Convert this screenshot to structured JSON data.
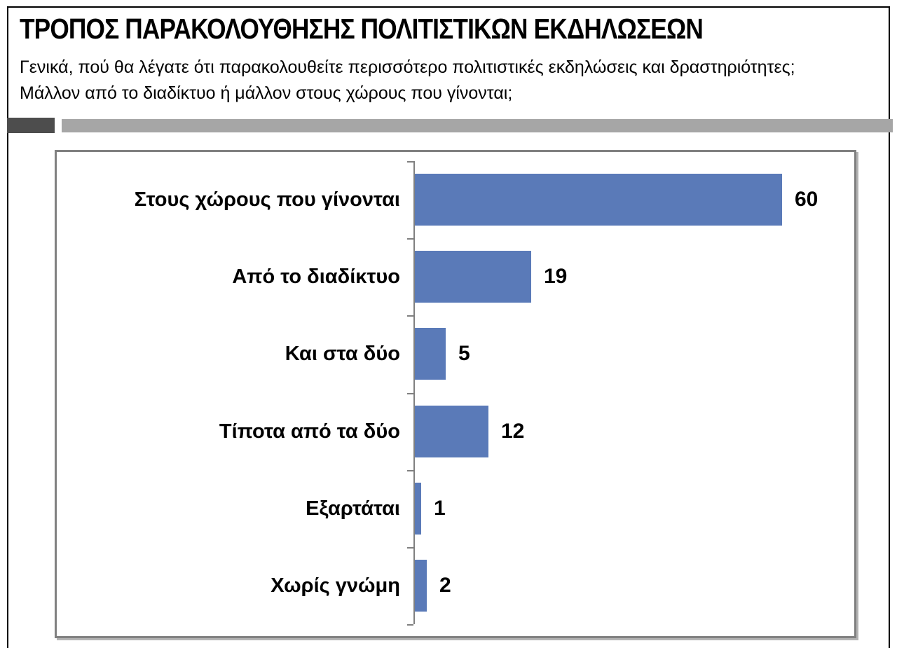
{
  "page": {
    "title": "ΤΡΟΠΟΣ ΠΑΡΑΚΟΛΟΥΘΗΣΗΣ ΠΟΛΙΤΙΣΤΙΚΩΝ ΕΚΔΗΛΩΣΕΩΝ",
    "subtitle_line1": "Γενικά, πού θα λέγατε ότι παρακολουθείτε περισσότερο πολιτιστικές εκδηλώσεις και δραστηριότητες;",
    "subtitle_line2": "Μάλλον από το διαδίκτυο ή μάλλον στους χώρους που γίνονται;"
  },
  "colors": {
    "bar": "#5A7AB8",
    "axis": "#808080",
    "chart_border": "#808080",
    "divider_dark": "#4D4D4D",
    "divider_light": "#A6A6A6",
    "page_border": "#000000",
    "text": "#000000"
  },
  "chart_data": {
    "type": "bar",
    "orientation": "horizontal",
    "title": "",
    "xlabel": "",
    "ylabel": "",
    "grid": false,
    "legend": false,
    "data_labels_position": "outside-end",
    "xlim": [
      0,
      60
    ],
    "categories": [
      "Στους χώρους που γίνονται",
      "Από το διαδίκτυο",
      "Και στα δύο",
      "Τίποτα από τα δύο",
      "Εξαρτάται",
      "Χωρίς γνώμη"
    ],
    "values": [
      60,
      19,
      5,
      12,
      1,
      2
    ],
    "value_labels": [
      "60",
      "19",
      "5",
      "12",
      "1",
      "2"
    ]
  }
}
